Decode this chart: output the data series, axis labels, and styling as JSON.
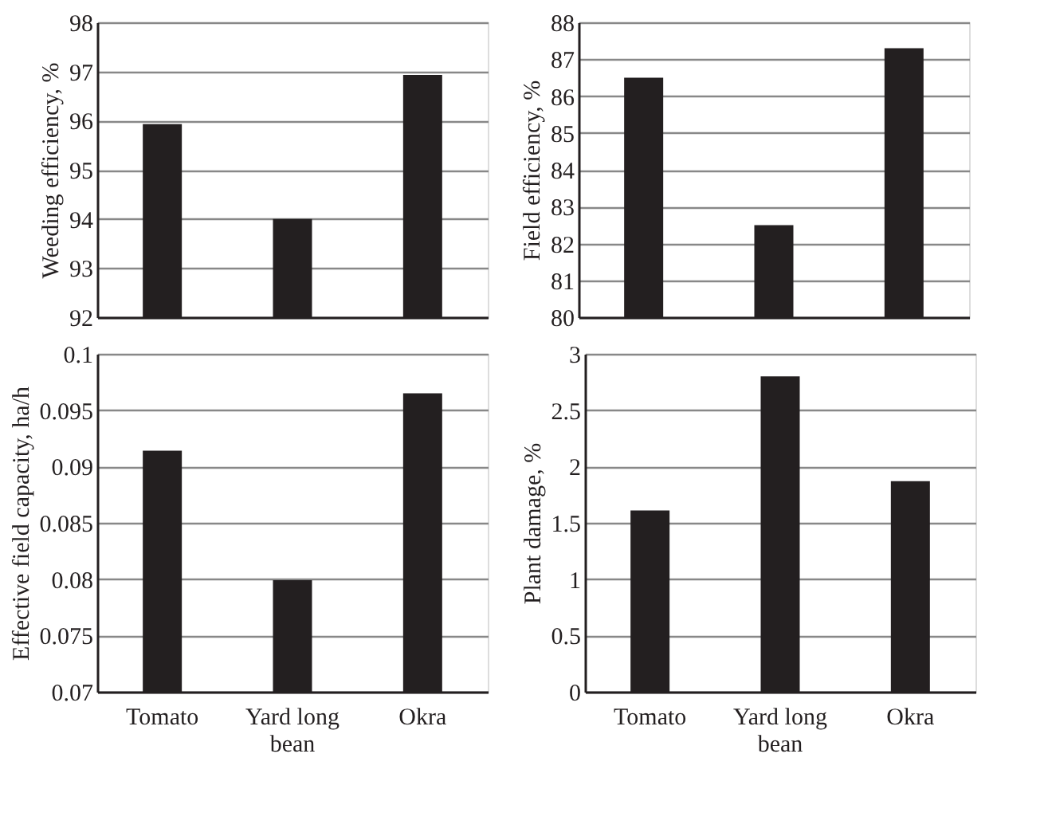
{
  "chart_data": [
    {
      "type": "bar",
      "ylabel": "Weeding efficiency, %",
      "categories": [
        "Tomato",
        "Yard long bean",
        "Okra"
      ],
      "values": [
        95.93,
        94.0,
        96.93
      ],
      "color": "#231f20",
      "ylim": [
        92,
        98
      ],
      "yticks": [
        92,
        93,
        94,
        95,
        96,
        97,
        98
      ],
      "grid": "y",
      "tick_labels": "y"
    },
    {
      "type": "bar",
      "ylabel": "Field efficiency, %",
      "categories": [
        "Tomato",
        "Yard long bean",
        "Okra"
      ],
      "values": [
        86.5,
        82.5,
        87.3
      ],
      "color": "#231f20",
      "ylim": [
        80,
        88
      ],
      "yticks": [
        80,
        81,
        82,
        83,
        84,
        85,
        86,
        87,
        88
      ],
      "grid": "y",
      "tick_labels": "y"
    },
    {
      "type": "bar",
      "ylabel": "Effective field capacity, ha/h",
      "categories": [
        "Tomato",
        "Yard long bean",
        "Okra"
      ],
      "values": [
        0.0914,
        0.0799,
        0.0965
      ],
      "color": "#231f20",
      "ylim": [
        0.07,
        0.1
      ],
      "yticks": [
        0.07,
        0.075,
        0.08,
        0.085,
        0.09,
        0.095,
        0.1
      ],
      "grid": "y"
    },
    {
      "type": "bar",
      "ylabel": "Plant damage, %",
      "categories": [
        "Tomato",
        "Yard long bean",
        "Okra"
      ],
      "values": [
        1.61,
        2.8,
        1.87
      ],
      "color": "#231f20",
      "ylim": [
        0,
        3
      ],
      "yticks": [
        0,
        0.5,
        1,
        1.5,
        2,
        2.5,
        3
      ],
      "grid": "y"
    }
  ]
}
